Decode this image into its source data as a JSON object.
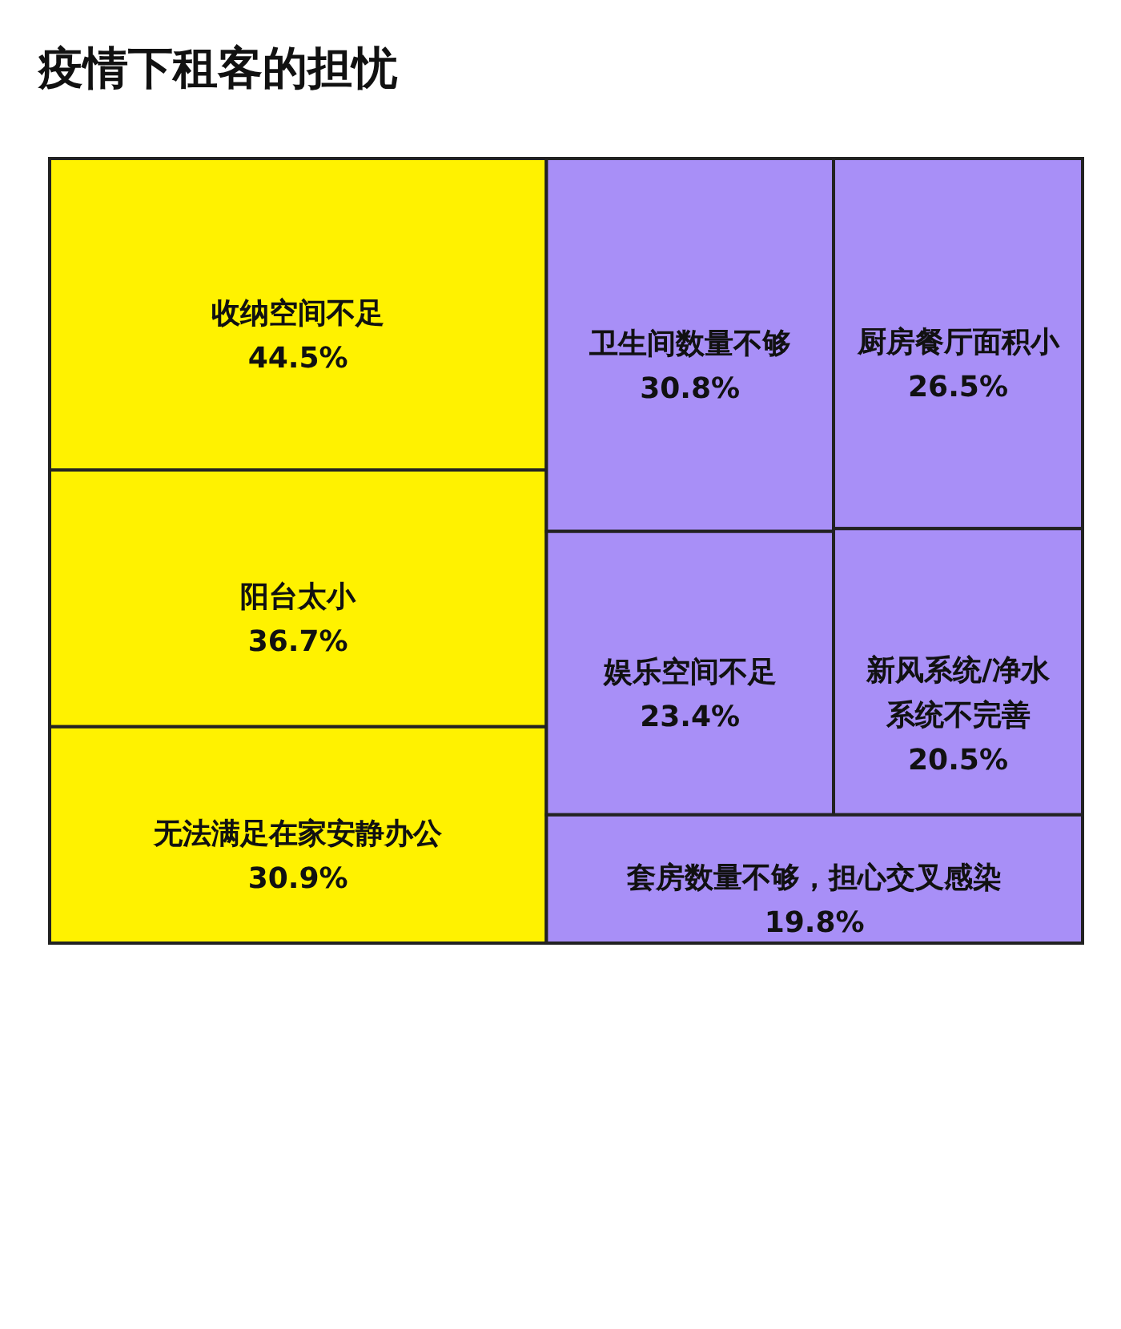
{
  "chart_data": {
    "type": "other",
    "title": "疫情下租客的担忧",
    "categories": [
      "收纳空间不足",
      "阳台太小",
      "无法满足在家安静办公",
      "卫生间数量不够",
      "厨房餐厅面积小",
      "娱乐空间不足",
      "新风系统/净水系统不完善",
      "套房数量不够，担心交叉感染"
    ],
    "values": [
      44.5,
      36.7,
      30.9,
      30.8,
      26.5,
      23.4,
      20.5,
      19.8
    ],
    "value_labels": [
      "44.5%",
      "36.7%",
      "30.9%",
      "30.8%",
      "26.5%",
      "23.4%",
      "20.5%",
      "19.8%"
    ],
    "colors": [
      "#fff200",
      "#fff200",
      "#fff200",
      "#a88ff7",
      "#a88ff7",
      "#a88ff7",
      "#a88ff7",
      "#a88ff7"
    ]
  }
}
